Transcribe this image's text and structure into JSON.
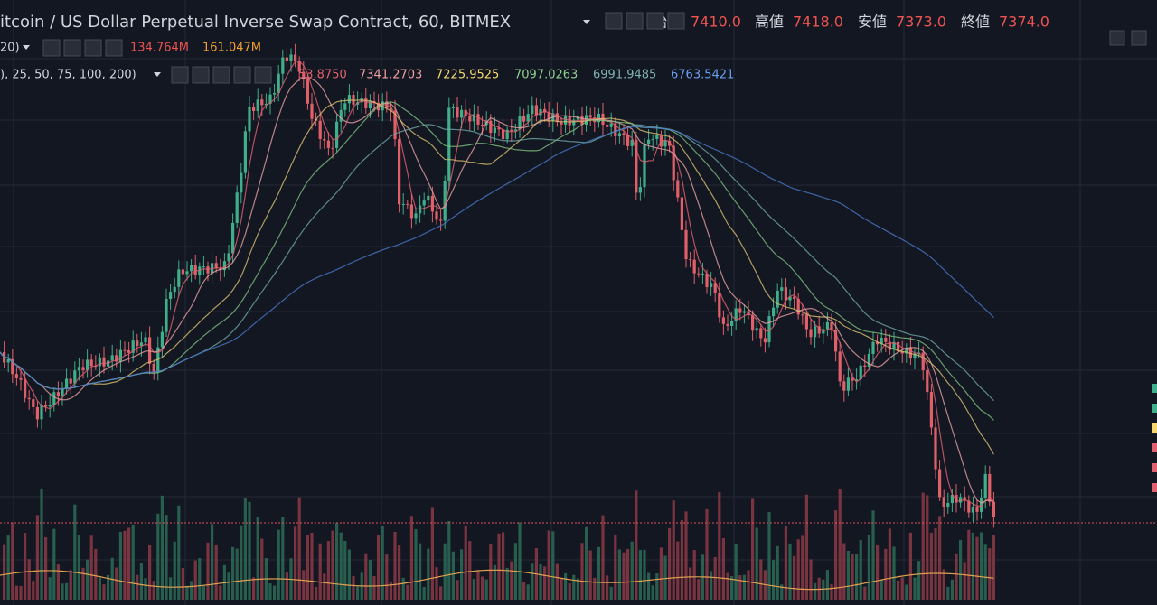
{
  "header": {
    "title": "itcoin / US Dollar Perpetual Inverse Swap Contract, 60, BITMEX",
    "ohlc": [
      {
        "label": "始値",
        "value": "7410.0"
      },
      {
        "label": "高値",
        "value": "7418.0"
      },
      {
        "label": "安値",
        "value": "7373.0"
      },
      {
        "label": "終値",
        "value": "7374.0"
      }
    ]
  },
  "volume_legend": {
    "params": "20)",
    "values": [
      "134.764M",
      "161.047M"
    ]
  },
  "ma_legend": {
    "params": "), 25, 50, 75, 100, 200)",
    "values": [
      "53.8750",
      "7341.2703",
      "7225.9525",
      "7097.0263",
      "6991.9485",
      "6763.5421"
    ]
  }
}
